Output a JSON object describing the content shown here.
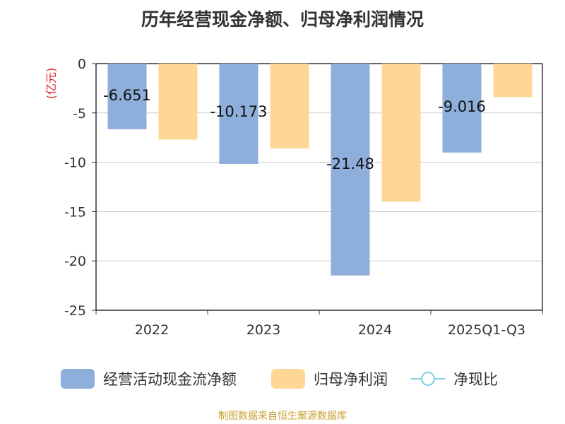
{
  "chart_data": {
    "type": "bar",
    "title": "历年经营现金净额、归母净利润情况",
    "ylabel": "(亿元)",
    "categories": [
      "2022",
      "2023",
      "2024",
      "2025Q1-Q3"
    ],
    "ylim": [
      -25,
      0
    ],
    "yticks": [
      0,
      -5,
      -10,
      -15,
      -20,
      -25
    ],
    "series": [
      {
        "name": "经营活动现金流净额",
        "color": "#8eaedb",
        "values": [
          -6.651,
          -10.173,
          -21.48,
          -9.016
        ],
        "labels": [
          "-6.651",
          "-10.173",
          "-21.48",
          "-9.016"
        ]
      },
      {
        "name": "归母净利润",
        "color": "#fed795",
        "values": [
          -7.7,
          -8.6,
          -14.0,
          -3.4
        ]
      }
    ],
    "line_series": {
      "name": "净现比",
      "color": "#7fcfe0"
    }
  },
  "source": "制图数据来自恒生聚源数据库"
}
